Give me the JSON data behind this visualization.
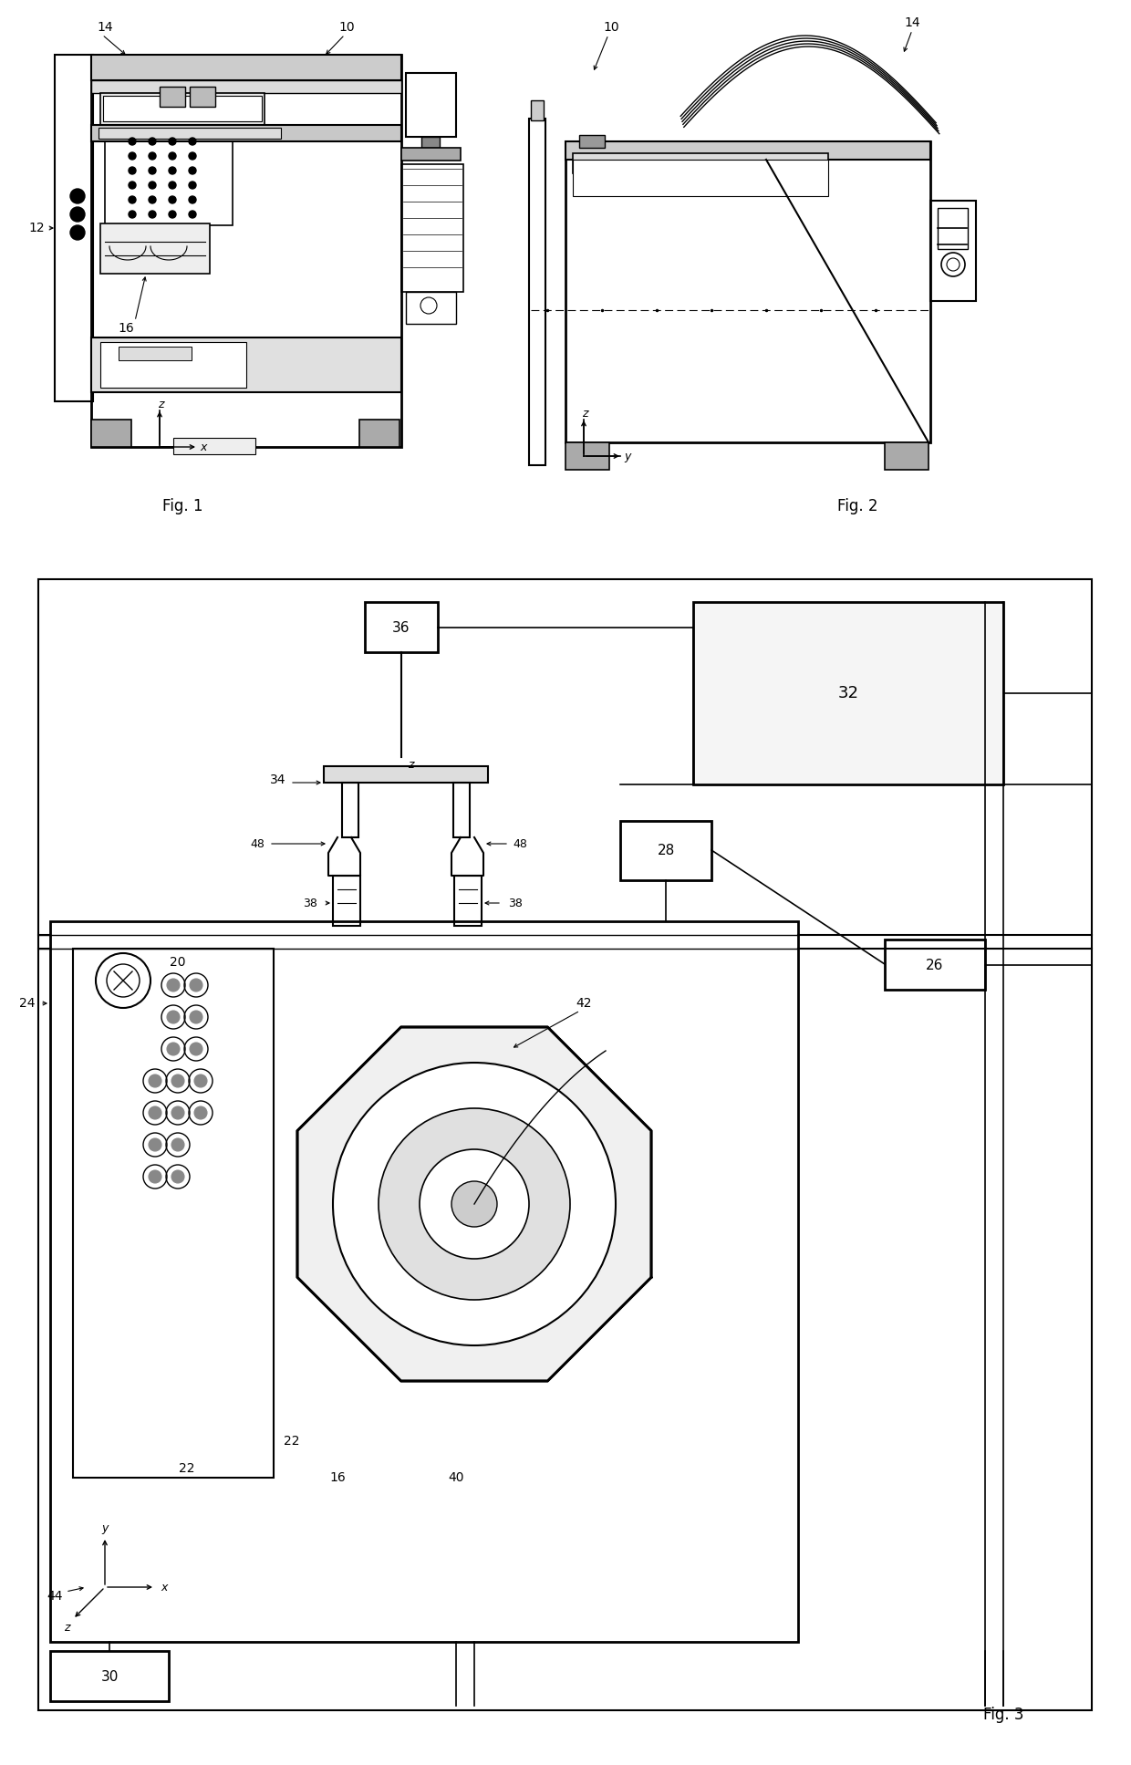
{
  "bg_color": "#ffffff",
  "fig_width": 12.4,
  "fig_height": 19.35,
  "fig1_label": "Fig. 1",
  "fig2_label": "Fig. 2",
  "fig3_label": "Fig. 3"
}
